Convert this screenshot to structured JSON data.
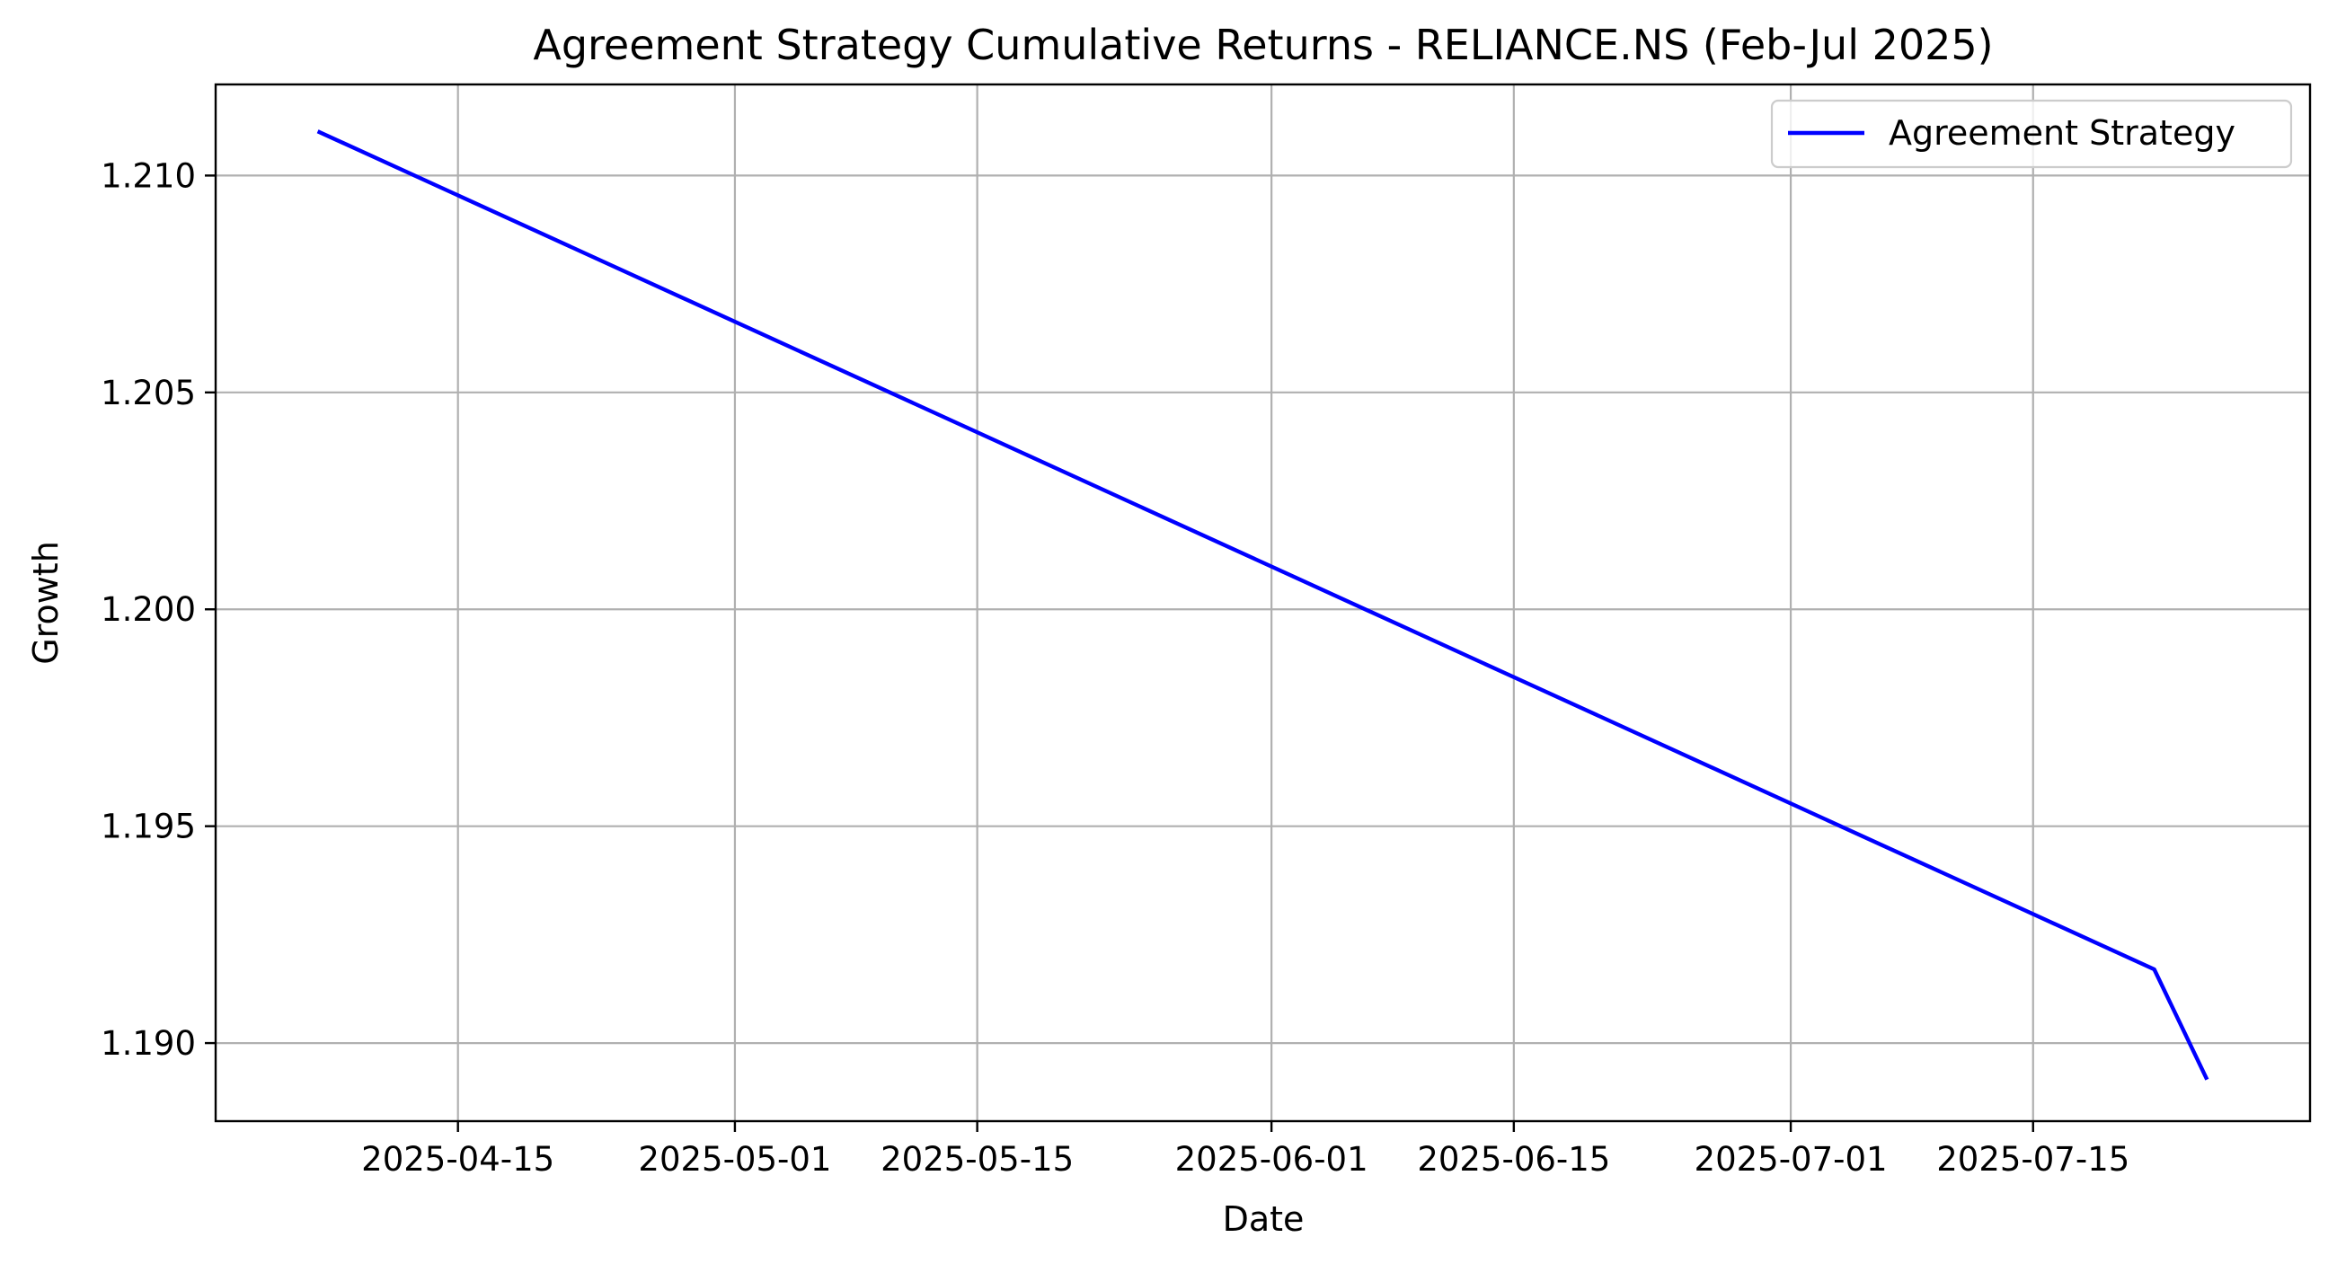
{
  "chart_data": {
    "type": "line",
    "title": "Agreement Strategy Cumulative Returns - RELIANCE.NS (Feb-Jul 2025)",
    "xlabel": "Date",
    "ylabel": "Growth",
    "x_ticks": [
      "2025-04-15",
      "2025-05-01",
      "2025-05-15",
      "2025-06-01",
      "2025-06-15",
      "2025-07-01",
      "2025-07-15"
    ],
    "y_ticks": [
      "1.190",
      "1.195",
      "1.200",
      "1.205",
      "1.210"
    ],
    "xlim": [
      "2025-04-01",
      "2025-07-31"
    ],
    "ylim": [
      1.1882,
      1.2121
    ],
    "grid": true,
    "legend_position": "top-right",
    "series": [
      {
        "name": "Agreement Strategy",
        "color": "#0000ff",
        "x": [
          "2025-04-07",
          "2025-07-22",
          "2025-07-25"
        ],
        "y": [
          1.211,
          1.1917,
          1.1892
        ]
      }
    ]
  }
}
